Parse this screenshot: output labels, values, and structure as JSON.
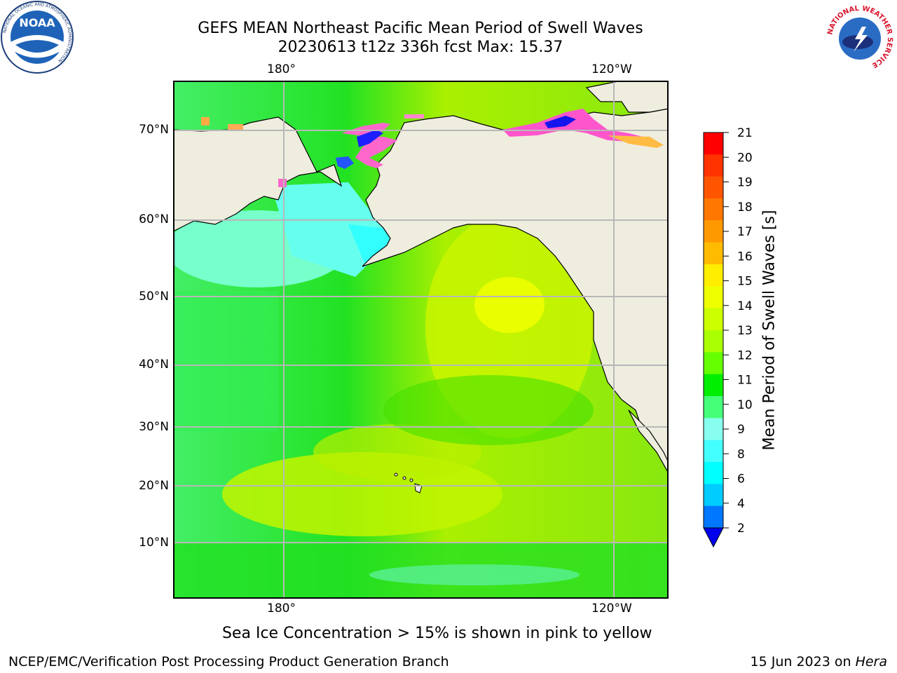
{
  "header": {
    "title_line1": "GEFS MEAN Northeast Pacific Mean Period of Swell Waves",
    "title_line2": "20230613 t12z 336h fcst   Max: 15.37"
  },
  "map": {
    "lon_labels": [
      "180°",
      "120°W"
    ],
    "lat_labels": [
      "70°N",
      "60°N",
      "50°N",
      "40°N",
      "30°N",
      "20°N",
      "10°N"
    ],
    "grid": true,
    "colors": {
      "land": "#efedde",
      "grid": "#b8b8b8",
      "coast": "#000000"
    }
  },
  "colorbar": {
    "label": "Mean Period of Swell Waves [s]",
    "ticks": [
      "21",
      "20",
      "19",
      "18",
      "17",
      "16",
      "15",
      "14",
      "13",
      "12",
      "11",
      "10",
      "9",
      "8",
      "6",
      "4",
      "2"
    ],
    "colors": [
      "#ff0000",
      "#ff3300",
      "#ff5500",
      "#ff7700",
      "#ff9900",
      "#ffbb00",
      "#ffee00",
      "#eeff00",
      "#ccff00",
      "#aaff00",
      "#66ff00",
      "#00ee00",
      "#44ff77",
      "#88ffee",
      "#44ffff",
      "#00ffff",
      "#00ccff",
      "#0077ff"
    ],
    "extend_color": "#0000ee"
  },
  "note": "Sea Ice Concentration > 15% is shown in pink to yellow",
  "footer": {
    "left": "NCEP/EMC/Verification Post Processing Product Generation Branch",
    "right_date": "15 Jun 2023 on ",
    "right_machine": "Hera"
  },
  "logos": {
    "noaa_text": "NOAA",
    "noaa_ring": "NATIONAL OCEANIC AND ATMOSPHERIC ADMINISTRATION",
    "noaa_ring_bottom": "U.S. DEPARTMENT OF COMMERCE",
    "nws_ring": "NATIONAL WEATHER SERVICE"
  }
}
